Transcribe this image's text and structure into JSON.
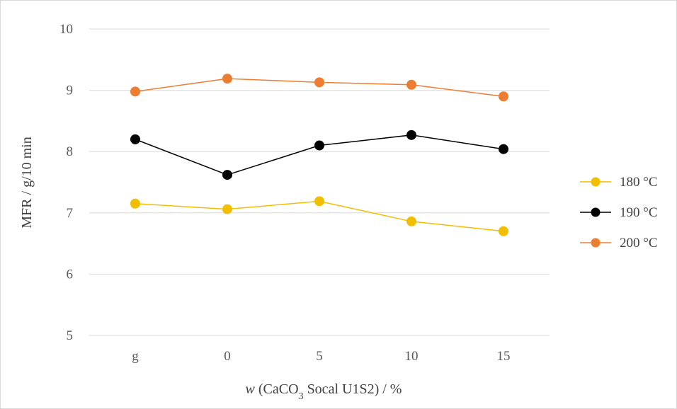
{
  "chart_data": {
    "type": "line",
    "categories": [
      "g",
      "0",
      "5",
      "10",
      "15"
    ],
    "series": [
      {
        "name": "180 °C",
        "color": "#F2BE00",
        "values": [
          7.15,
          7.06,
          7.19,
          6.86,
          6.7
        ]
      },
      {
        "name": "190 °C",
        "color": "#000000",
        "values": [
          8.2,
          7.62,
          8.1,
          8.27,
          8.04
        ]
      },
      {
        "name": "200 °C",
        "color": "#ED7D31",
        "values": [
          8.98,
          9.19,
          9.13,
          9.09,
          8.9
        ]
      }
    ],
    "ylim": [
      5,
      10
    ],
    "yticks": [
      "5",
      "6",
      "7",
      "8",
      "9",
      "10"
    ],
    "ylabel": "MFR / g/10 min",
    "xlabel": {
      "italic": "w",
      "pre": " (CaCO",
      "sub": "3",
      "post": " Socal U1S2) / %"
    },
    "grid": true,
    "legend_position": "right"
  }
}
